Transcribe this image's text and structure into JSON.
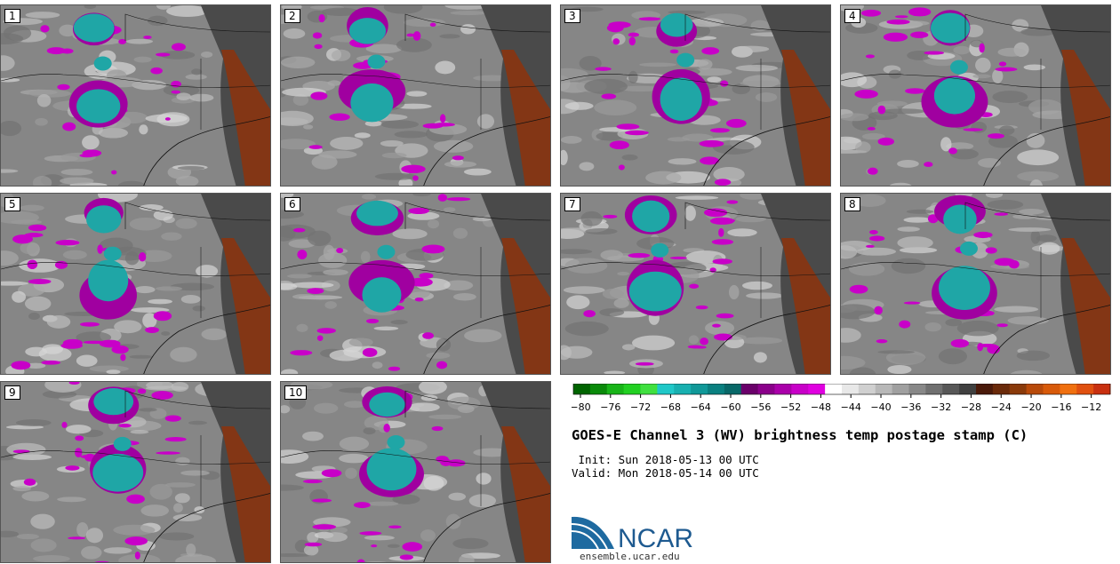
{
  "panels": [
    {
      "label": "1"
    },
    {
      "label": "2"
    },
    {
      "label": "3"
    },
    {
      "label": "4"
    },
    {
      "label": "5"
    },
    {
      "label": "6"
    },
    {
      "label": "7"
    },
    {
      "label": "8"
    },
    {
      "label": "9"
    },
    {
      "label": "10"
    }
  ],
  "colorbar": {
    "ticks": [
      "−80",
      "−76",
      "−72",
      "−68",
      "−64",
      "−60",
      "−56",
      "−52",
      "−48",
      "−44",
      "−40",
      "−36",
      "−32",
      "−28",
      "−24",
      "−20",
      "−16",
      "−12"
    ],
    "colors": [
      "#006400",
      "#0a8a0a",
      "#18b418",
      "#22d022",
      "#40e040",
      "#20c8c8",
      "#18b0b0",
      "#109898",
      "#0a8080",
      "#086868",
      "#6a006a",
      "#8a008a",
      "#aa00aa",
      "#c800c8",
      "#e000e0",
      "#ffffff",
      "#e8e8e8",
      "#d0d0d0",
      "#b8b8b8",
      "#a0a0a0",
      "#888888",
      "#707070",
      "#585858",
      "#404040",
      "#4a1a0a",
      "#6a2a0a",
      "#8a3a0a",
      "#b84a0a",
      "#d85a0a",
      "#f07010",
      "#e05010",
      "#c83010"
    ]
  },
  "title": "GOES-E Channel 3 (WV) brightness temp postage stamp (C)",
  "init_line": " Init: Sun 2018-05-13 00 UTC",
  "valid_line": "Valid: Mon 2018-05-14 00 UTC",
  "logo_text": "NCAR",
  "url": "ensemble.ucar.edu",
  "colors": {
    "teal": "#1fa6a6",
    "magenta": "#c800c8",
    "brown": "#8a3410",
    "dark_gray": "#404040"
  }
}
